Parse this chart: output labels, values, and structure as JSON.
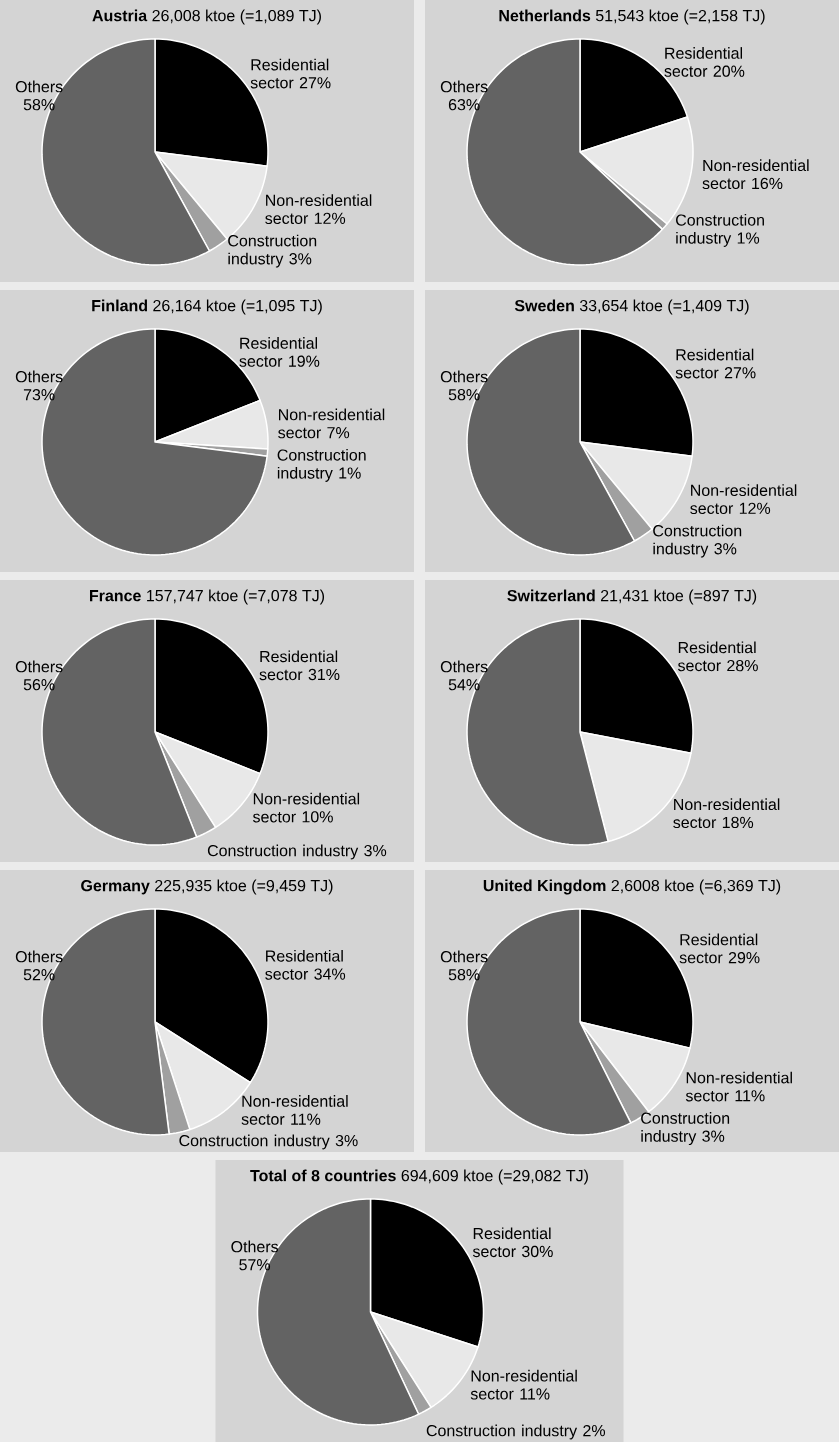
{
  "chart_data": [
    {
      "type": "pie",
      "title": "**Austria** 26,008 ktoe (=1,089 TJ)",
      "categories": [
        "Residential sector",
        "Non-residential sector",
        "Construction industry",
        "Others"
      ],
      "values": [
        27,
        12,
        3,
        58
      ],
      "value_labels": [
        "27%",
        "12%",
        "3%",
        "58%"
      ],
      "colors": [
        "#000000",
        "#e8e8e8",
        "#a0a0a0",
        "#636363"
      ]
    },
    {
      "type": "pie",
      "title": "**Netherlands** 51,543 ktoe (=2,158 TJ)",
      "categories": [
        "Residential sector",
        "Non-residential sector",
        "Construction industry",
        "Others"
      ],
      "values": [
        20,
        16,
        1,
        63
      ],
      "value_labels": [
        "20%",
        "16%",
        "1%",
        "63%"
      ],
      "colors": [
        "#000000",
        "#e8e8e8",
        "#a0a0a0",
        "#636363"
      ]
    },
    {
      "type": "pie",
      "title": "**Finland** 26,164 ktoe (=1,095 TJ)",
      "categories": [
        "Residential sector",
        "Non-residential sector",
        "Construction industry",
        "Others"
      ],
      "values": [
        19,
        7,
        1,
        73
      ],
      "value_labels": [
        "19%",
        "7%",
        "1%",
        "73%"
      ],
      "colors": [
        "#000000",
        "#e8e8e8",
        "#a0a0a0",
        "#636363"
      ]
    },
    {
      "type": "pie",
      "title": "**Sweden** 33,654 ktoe (=1,409 TJ)",
      "categories": [
        "Residential sector",
        "Non-residential sector",
        "Construction industry",
        "Others"
      ],
      "values": [
        27,
        12,
        3,
        58
      ],
      "value_labels": [
        "27%",
        "12%",
        "3%",
        "58%"
      ],
      "colors": [
        "#000000",
        "#e8e8e8",
        "#a0a0a0",
        "#636363"
      ]
    },
    {
      "type": "pie",
      "title": "**France** 157,747 ktoe (=7,078 TJ)",
      "categories": [
        "Residential sector",
        "Non-residential sector",
        "Construction industry",
        "Others"
      ],
      "values": [
        31,
        10,
        3,
        56
      ],
      "value_labels": [
        "31%",
        "10%",
        "3%",
        "56%"
      ],
      "colors": [
        "#000000",
        "#e8e8e8",
        "#a0a0a0",
        "#636363"
      ]
    },
    {
      "type": "pie",
      "title": "**Switzerland** 21,431 ktoe (=897 TJ)",
      "categories": [
        "Residential sector",
        "Non-residential sector",
        "Others"
      ],
      "values": [
        28,
        18,
        54
      ],
      "value_labels": [
        "28%",
        "18%",
        "54%"
      ],
      "colors": [
        "#000000",
        "#e8e8e8",
        "#636363"
      ]
    },
    {
      "type": "pie",
      "title": "**Germany** 225,935 ktoe (=9,459 TJ)",
      "categories": [
        "Residential sector",
        "Non-residential sector",
        "Construction industry",
        "Others"
      ],
      "values": [
        34,
        11,
        3,
        52
      ],
      "value_labels": [
        "34%",
        "11%",
        "3%",
        "52%"
      ],
      "colors": [
        "#000000",
        "#e8e8e8",
        "#a0a0a0",
        "#636363"
      ]
    },
    {
      "type": "pie",
      "title": "**United Kingdom** 2,6008 ktoe (=6,369 TJ)",
      "categories": [
        "Residential sector",
        "Non-residential sector",
        "Construction industry",
        "Others"
      ],
      "values": [
        29,
        11,
        3,
        58
      ],
      "value_labels": [
        "29%",
        "11%",
        "3%",
        "58%"
      ],
      "colors": [
        "#000000",
        "#e8e8e8",
        "#a0a0a0",
        "#636363"
      ]
    },
    {
      "type": "pie",
      "title": "**Total of 8 countries** 694,609 ktoe (=29,082 TJ)",
      "categories": [
        "Residential sector",
        "Non-residential sector",
        "Construction industry",
        "Others"
      ],
      "values": [
        30,
        11,
        2,
        57
      ],
      "value_labels": [
        "30%",
        "11%",
        "2%",
        "57%"
      ],
      "colors": [
        "#000000",
        "#e8e8e8",
        "#a0a0a0",
        "#636363"
      ]
    }
  ]
}
